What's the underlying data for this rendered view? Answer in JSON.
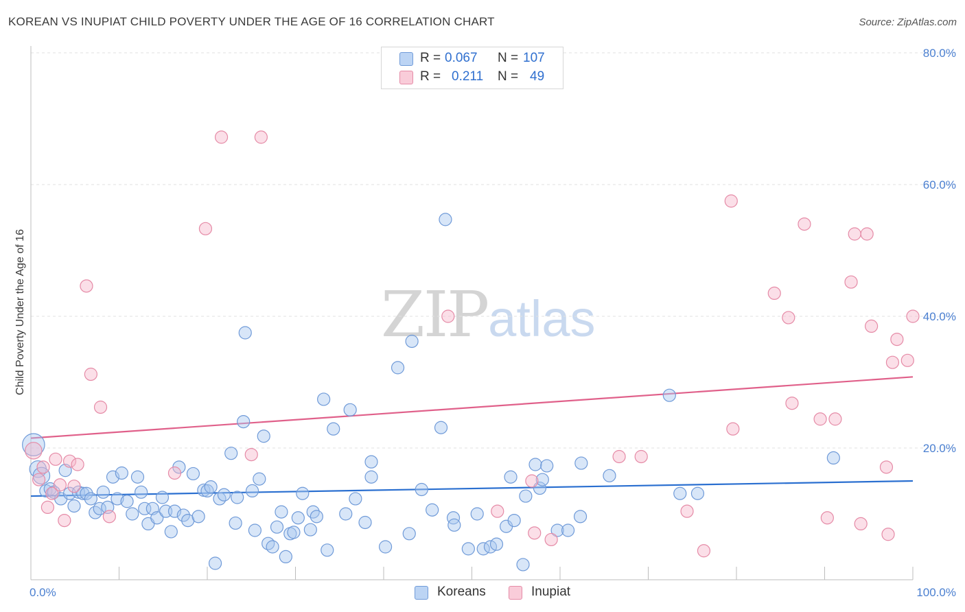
{
  "header": {
    "title": "KOREAN VS INUPIAT CHILD POVERTY UNDER THE AGE OF 16 CORRELATION CHART",
    "source": "Source: ZipAtlas.com"
  },
  "legend": {
    "r_label": "R =",
    "n_label": "N =",
    "rows": [
      {
        "r": "0.067",
        "n": "107"
      },
      {
        "r": "0.211",
        "n": "49"
      }
    ]
  },
  "bottom_legend": {
    "koreans": "Koreans",
    "inupiat": "Inupiat"
  },
  "watermark": {
    "zip": "ZIP",
    "atlas": "atlas"
  },
  "colors": {
    "koreans_fill": "#a8c8f0",
    "koreans_stroke": "#6f9ad8",
    "koreans_line": "#2a6fd0",
    "inupiat_fill": "#f7b8cb",
    "inupiat_stroke": "#e58aa6",
    "inupiat_line": "#e0608a",
    "axis_label": "#4a7fd0"
  },
  "chart_data": {
    "type": "scatter",
    "title": "KOREAN VS INUPIAT CHILD POVERTY UNDER THE AGE OF 16 CORRELATION CHART",
    "xlabel": "",
    "ylabel": "Child Poverty Under the Age of 16",
    "xlim": [
      0,
      100
    ],
    "ylim": [
      0,
      80
    ],
    "x_tick_labels": [
      "0.0%",
      "100.0%"
    ],
    "y_ticks": [
      20,
      40,
      60,
      80
    ],
    "y_tick_labels": [
      "20.0%",
      "40.0%",
      "60.0%",
      "80.0%"
    ],
    "grid": "horizontal dashed",
    "legend_position": "top-center",
    "series": [
      {
        "name": "Koreans",
        "R": 0.067,
        "N": 107,
        "trend": {
          "x": [
            0,
            100
          ],
          "y": [
            12.7,
            15.0
          ]
        },
        "points": [
          {
            "x": 0.3,
            "y": 20.5,
            "size": 3
          },
          {
            "x": 0.8,
            "y": 16.8,
            "size": 2
          },
          {
            "x": 1.2,
            "y": 15.8,
            "size": 2
          },
          {
            "x": 1.7,
            "y": 13.5
          },
          {
            "x": 2.2,
            "y": 13.8
          },
          {
            "x": 2.6,
            "y": 13.3
          },
          {
            "x": 3.4,
            "y": 12.3
          },
          {
            "x": 3.9,
            "y": 16.6
          },
          {
            "x": 4.4,
            "y": 13.1
          },
          {
            "x": 4.9,
            "y": 11.2
          },
          {
            "x": 5.4,
            "y": 13.3
          },
          {
            "x": 5.9,
            "y": 13.1
          },
          {
            "x": 6.3,
            "y": 13.1
          },
          {
            "x": 6.8,
            "y": 12.3
          },
          {
            "x": 7.3,
            "y": 10.2
          },
          {
            "x": 7.8,
            "y": 10.8
          },
          {
            "x": 8.2,
            "y": 13.3
          },
          {
            "x": 8.7,
            "y": 11.0
          },
          {
            "x": 9.3,
            "y": 15.6
          },
          {
            "x": 9.8,
            "y": 12.3
          },
          {
            "x": 10.3,
            "y": 16.2
          },
          {
            "x": 10.9,
            "y": 11.9
          },
          {
            "x": 11.5,
            "y": 10.0
          },
          {
            "x": 12.1,
            "y": 15.6
          },
          {
            "x": 12.5,
            "y": 13.3
          },
          {
            "x": 12.9,
            "y": 10.8
          },
          {
            "x": 13.3,
            "y": 8.5
          },
          {
            "x": 13.8,
            "y": 10.8
          },
          {
            "x": 14.3,
            "y": 9.4
          },
          {
            "x": 14.9,
            "y": 12.5
          },
          {
            "x": 15.3,
            "y": 10.4
          },
          {
            "x": 15.9,
            "y": 7.3
          },
          {
            "x": 16.3,
            "y": 10.4
          },
          {
            "x": 16.8,
            "y": 17.1
          },
          {
            "x": 17.3,
            "y": 9.8
          },
          {
            "x": 17.8,
            "y": 9.0
          },
          {
            "x": 18.4,
            "y": 16.1
          },
          {
            "x": 19.0,
            "y": 9.6
          },
          {
            "x": 19.6,
            "y": 13.6
          },
          {
            "x": 20.0,
            "y": 13.5
          },
          {
            "x": 20.4,
            "y": 14.1
          },
          {
            "x": 20.9,
            "y": 2.5
          },
          {
            "x": 21.4,
            "y": 12.3
          },
          {
            "x": 21.9,
            "y": 12.9
          },
          {
            "x": 22.7,
            "y": 19.2
          },
          {
            "x": 23.2,
            "y": 8.6
          },
          {
            "x": 23.4,
            "y": 12.5
          },
          {
            "x": 24.1,
            "y": 24.0
          },
          {
            "x": 24.3,
            "y": 37.5
          },
          {
            "x": 25.1,
            "y": 13.5
          },
          {
            "x": 25.4,
            "y": 7.5
          },
          {
            "x": 25.9,
            "y": 15.3
          },
          {
            "x": 26.4,
            "y": 21.8
          },
          {
            "x": 26.9,
            "y": 5.5
          },
          {
            "x": 27.4,
            "y": 5.0
          },
          {
            "x": 27.9,
            "y": 8.0
          },
          {
            "x": 28.4,
            "y": 10.3
          },
          {
            "x": 28.9,
            "y": 3.5
          },
          {
            "x": 29.4,
            "y": 7.0
          },
          {
            "x": 29.8,
            "y": 7.2
          },
          {
            "x": 30.3,
            "y": 9.4
          },
          {
            "x": 30.8,
            "y": 13.1
          },
          {
            "x": 31.7,
            "y": 7.6
          },
          {
            "x": 32.0,
            "y": 10.3
          },
          {
            "x": 32.4,
            "y": 9.6
          },
          {
            "x": 33.2,
            "y": 27.4
          },
          {
            "x": 33.6,
            "y": 4.5
          },
          {
            "x": 34.3,
            "y": 22.9
          },
          {
            "x": 35.7,
            "y": 10.0
          },
          {
            "x": 36.2,
            "y": 25.8
          },
          {
            "x": 36.8,
            "y": 12.3
          },
          {
            "x": 37.9,
            "y": 8.7
          },
          {
            "x": 38.6,
            "y": 17.9
          },
          {
            "x": 38.6,
            "y": 15.6
          },
          {
            "x": 40.2,
            "y": 5.0
          },
          {
            "x": 41.6,
            "y": 32.2
          },
          {
            "x": 42.9,
            "y": 7.0
          },
          {
            "x": 43.2,
            "y": 36.2
          },
          {
            "x": 44.3,
            "y": 13.7
          },
          {
            "x": 45.5,
            "y": 10.6
          },
          {
            "x": 46.5,
            "y": 23.1
          },
          {
            "x": 47.0,
            "y": 54.7
          },
          {
            "x": 47.9,
            "y": 9.4
          },
          {
            "x": 48.0,
            "y": 8.3
          },
          {
            "x": 49.6,
            "y": 4.7
          },
          {
            "x": 50.6,
            "y": 10.0
          },
          {
            "x": 51.3,
            "y": 4.7
          },
          {
            "x": 52.1,
            "y": 5.0
          },
          {
            "x": 52.8,
            "y": 5.4
          },
          {
            "x": 53.9,
            "y": 8.1
          },
          {
            "x": 54.4,
            "y": 15.6
          },
          {
            "x": 54.8,
            "y": 9.0
          },
          {
            "x": 55.8,
            "y": 2.3
          },
          {
            "x": 56.1,
            "y": 12.7
          },
          {
            "x": 57.2,
            "y": 17.5
          },
          {
            "x": 57.7,
            "y": 13.9
          },
          {
            "x": 58.0,
            "y": 15.2
          },
          {
            "x": 58.5,
            "y": 17.3
          },
          {
            "x": 59.7,
            "y": 7.5
          },
          {
            "x": 60.9,
            "y": 7.5
          },
          {
            "x": 62.3,
            "y": 9.6
          },
          {
            "x": 62.4,
            "y": 17.7
          },
          {
            "x": 65.6,
            "y": 15.8
          },
          {
            "x": 72.4,
            "y": 28.0
          },
          {
            "x": 73.6,
            "y": 13.1
          },
          {
            "x": 75.6,
            "y": 13.1
          },
          {
            "x": 91.0,
            "y": 18.5
          }
        ]
      },
      {
        "name": "Inupiat",
        "R": 0.211,
        "N": 49,
        "trend": {
          "x": [
            0,
            100
          ],
          "y": [
            21.5,
            30.8
          ]
        },
        "points": [
          {
            "x": 0.3,
            "y": 19.6,
            "size": 2
          },
          {
            "x": 0.9,
            "y": 15.2
          },
          {
            "x": 1.4,
            "y": 17.1
          },
          {
            "x": 1.9,
            "y": 11.0
          },
          {
            "x": 2.4,
            "y": 13.1
          },
          {
            "x": 2.8,
            "y": 18.3
          },
          {
            "x": 3.3,
            "y": 14.4
          },
          {
            "x": 3.8,
            "y": 9.0
          },
          {
            "x": 4.4,
            "y": 18.0
          },
          {
            "x": 4.9,
            "y": 14.2
          },
          {
            "x": 5.3,
            "y": 17.5
          },
          {
            "x": 6.3,
            "y": 44.6
          },
          {
            "x": 6.8,
            "y": 31.2
          },
          {
            "x": 7.9,
            "y": 26.2
          },
          {
            "x": 8.9,
            "y": 9.6
          },
          {
            "x": 16.3,
            "y": 16.2
          },
          {
            "x": 19.8,
            "y": 53.3
          },
          {
            "x": 21.6,
            "y": 67.2
          },
          {
            "x": 25.0,
            "y": 19.0
          },
          {
            "x": 26.1,
            "y": 67.2
          },
          {
            "x": 47.3,
            "y": 40.0
          },
          {
            "x": 52.9,
            "y": 10.4
          },
          {
            "x": 56.8,
            "y": 15.0
          },
          {
            "x": 57.1,
            "y": 7.1
          },
          {
            "x": 59.0,
            "y": 6.1
          },
          {
            "x": 66.7,
            "y": 18.7
          },
          {
            "x": 69.2,
            "y": 18.7
          },
          {
            "x": 74.4,
            "y": 10.4
          },
          {
            "x": 76.3,
            "y": 4.4
          },
          {
            "x": 79.4,
            "y": 57.5
          },
          {
            "x": 79.6,
            "y": 22.9
          },
          {
            "x": 84.3,
            "y": 43.5
          },
          {
            "x": 85.9,
            "y": 39.8
          },
          {
            "x": 86.3,
            "y": 26.8
          },
          {
            "x": 87.7,
            "y": 54.0
          },
          {
            "x": 89.5,
            "y": 24.4
          },
          {
            "x": 90.3,
            "y": 9.4
          },
          {
            "x": 91.2,
            "y": 24.4
          },
          {
            "x": 93.0,
            "y": 45.2
          },
          {
            "x": 93.4,
            "y": 52.5
          },
          {
            "x": 94.1,
            "y": 8.5
          },
          {
            "x": 94.8,
            "y": 52.5
          },
          {
            "x": 95.3,
            "y": 38.5
          },
          {
            "x": 97.0,
            "y": 17.1
          },
          {
            "x": 97.2,
            "y": 6.9
          },
          {
            "x": 97.7,
            "y": 33.0
          },
          {
            "x": 98.2,
            "y": 36.5
          },
          {
            "x": 99.4,
            "y": 33.3
          },
          {
            "x": 100.0,
            "y": 40.0
          }
        ]
      }
    ]
  }
}
